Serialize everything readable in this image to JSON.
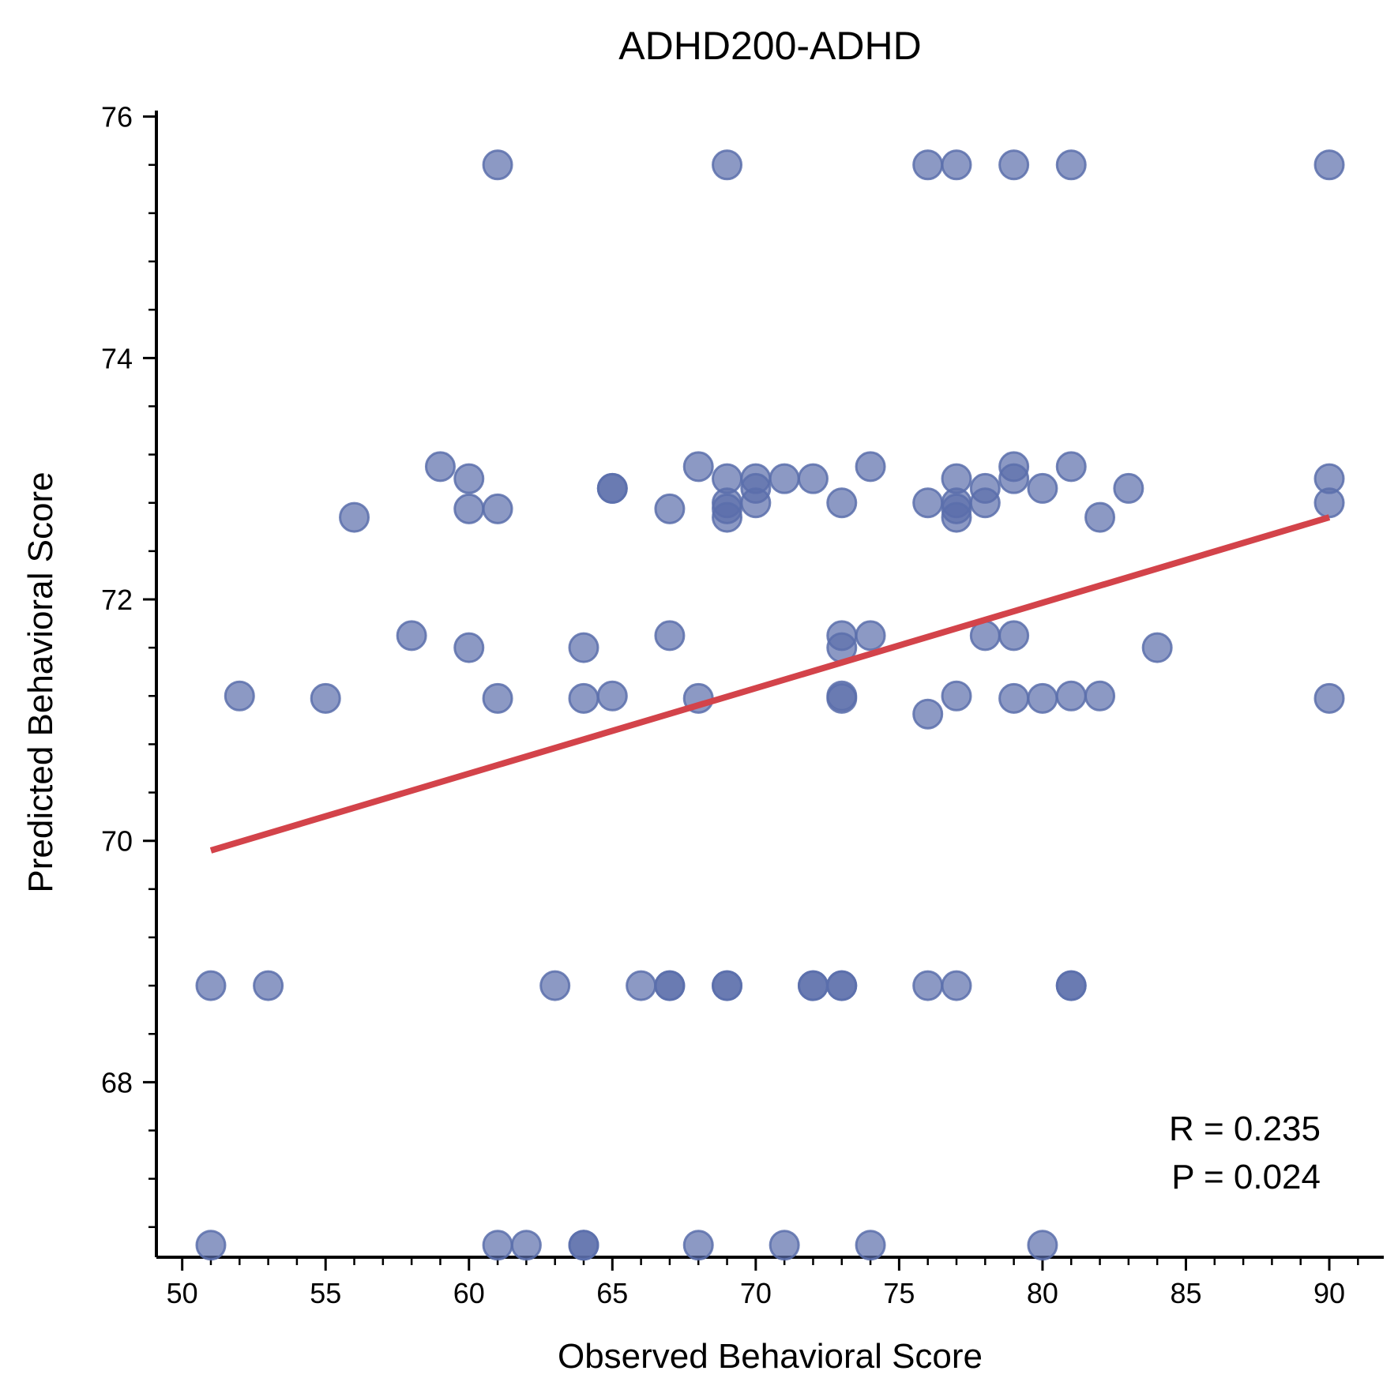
{
  "chart_data": {
    "type": "scatter",
    "title": "ADHD200-ADHD",
    "xlabel": "Observed Behavioral Score",
    "ylabel": "Predicted Behavioral Score",
    "xlim": [
      49.1,
      91.9
    ],
    "ylim": [
      66.55,
      76.05
    ],
    "xticks": [
      50,
      55,
      60,
      65,
      70,
      75,
      80,
      85,
      90
    ],
    "yticks": [
      68,
      70,
      72,
      74,
      76
    ],
    "grid": false,
    "legend": "none",
    "point_color": "#5b6eab",
    "line_color": "#d3434a",
    "points": [
      [
        61,
        75.6
      ],
      [
        69,
        75.6
      ],
      [
        76,
        75.6
      ],
      [
        77,
        75.6
      ],
      [
        79,
        75.6
      ],
      [
        81,
        75.6
      ],
      [
        90,
        75.6
      ],
      [
        59,
        73.1
      ],
      [
        60,
        73.0
      ],
      [
        60,
        72.75
      ],
      [
        61,
        72.75
      ],
      [
        56,
        72.68
      ],
      [
        65,
        72.92
      ],
      [
        65,
        72.92
      ],
      [
        67,
        72.75
      ],
      [
        68,
        73.1
      ],
      [
        69,
        73.0
      ],
      [
        69,
        72.8
      ],
      [
        69,
        72.75
      ],
      [
        69,
        72.68
      ],
      [
        70,
        73.0
      ],
      [
        70,
        72.92
      ],
      [
        70,
        72.8
      ],
      [
        71,
        73.0
      ],
      [
        72,
        73.0
      ],
      [
        73,
        72.8
      ],
      [
        74,
        73.1
      ],
      [
        76,
        72.8
      ],
      [
        77,
        73.0
      ],
      [
        77,
        72.8
      ],
      [
        77,
        72.75
      ],
      [
        77,
        72.68
      ],
      [
        78,
        72.92
      ],
      [
        78,
        72.8
      ],
      [
        79,
        73.1
      ],
      [
        79,
        73.0
      ],
      [
        80,
        72.92
      ],
      [
        81,
        73.1
      ],
      [
        82,
        72.68
      ],
      [
        83,
        72.92
      ],
      [
        90,
        73.0
      ],
      [
        90,
        72.8
      ],
      [
        58,
        71.7
      ],
      [
        60,
        71.6
      ],
      [
        64,
        71.6
      ],
      [
        67,
        71.7
      ],
      [
        73,
        71.7
      ],
      [
        73,
        71.6
      ],
      [
        74,
        71.7
      ],
      [
        78,
        71.7
      ],
      [
        79,
        71.7
      ],
      [
        84,
        71.6
      ],
      [
        52,
        71.2
      ],
      [
        55,
        71.18
      ],
      [
        61,
        71.18
      ],
      [
        64,
        71.18
      ],
      [
        65,
        71.2
      ],
      [
        68,
        71.18
      ],
      [
        73,
        71.2
      ],
      [
        73,
        71.18
      ],
      [
        76,
        71.05
      ],
      [
        77,
        71.2
      ],
      [
        79,
        71.18
      ],
      [
        80,
        71.18
      ],
      [
        81,
        71.2
      ],
      [
        82,
        71.2
      ],
      [
        90,
        71.18
      ],
      [
        51,
        68.8
      ],
      [
        53,
        68.8
      ],
      [
        63,
        68.8
      ],
      [
        66,
        68.8
      ],
      [
        67,
        68.8
      ],
      [
        67,
        68.8
      ],
      [
        69,
        68.8
      ],
      [
        69,
        68.8
      ],
      [
        72,
        68.8
      ],
      [
        72,
        68.8
      ],
      [
        73,
        68.8
      ],
      [
        73,
        68.8
      ],
      [
        76,
        68.8
      ],
      [
        77,
        68.8
      ],
      [
        81,
        68.8
      ],
      [
        81,
        68.8
      ],
      [
        51,
        66.65
      ],
      [
        61,
        66.65
      ],
      [
        62,
        66.65
      ],
      [
        64,
        66.65
      ],
      [
        64,
        66.65
      ],
      [
        68,
        66.65
      ],
      [
        71,
        66.65
      ],
      [
        74,
        66.65
      ],
      [
        80,
        66.65
      ]
    ],
    "fit_line": {
      "x": [
        51,
        90
      ],
      "y": [
        69.92,
        72.68
      ]
    },
    "annotations": [
      "R = 0.235",
      "P = 0.024"
    ]
  }
}
